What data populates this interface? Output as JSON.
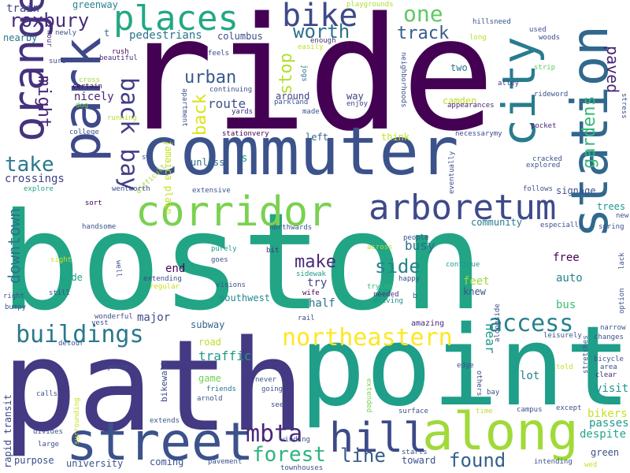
{
  "words": [
    {
      "text": "ride",
      "color": "#440154"
    },
    {
      "text": "boston",
      "color": "#21a585"
    },
    {
      "text": "path",
      "color": "#443983"
    },
    {
      "text": "point",
      "color": "#1f9e89"
    },
    {
      "text": "commuter",
      "color": "#3b528b"
    },
    {
      "text": "park",
      "color": "#3e4989"
    },
    {
      "text": "station",
      "color": "#31688e"
    },
    {
      "text": "city",
      "color": "#287c8e"
    },
    {
      "text": "along",
      "color": "#a0da39"
    },
    {
      "text": "street",
      "color": "#3b528b"
    },
    {
      "text": "corridor",
      "color": "#7ad151"
    },
    {
      "text": "arboretum",
      "color": "#3e4a89"
    },
    {
      "text": "places",
      "color": "#22a884"
    },
    {
      "text": "bike",
      "color": "#3e4a89"
    },
    {
      "text": "one",
      "color": "#5ec962"
    },
    {
      "text": "orange line",
      "color": "#46327e"
    },
    {
      "text": "hill",
      "color": "#3e4989"
    },
    {
      "text": "access",
      "color": "#26828e"
    },
    {
      "text": "northeastern",
      "color": "#fde725"
    },
    {
      "text": "buildings",
      "color": "#2a788e"
    },
    {
      "text": "mbta",
      "color": "#482878"
    },
    {
      "text": "forest",
      "color": "#2fb47c"
    },
    {
      "text": "line",
      "color": "#375a8c"
    },
    {
      "text": "found",
      "color": "#355f8d"
    },
    {
      "text": "take",
      "color": "#2a788e"
    },
    {
      "text": "back bay",
      "color": "#433e85"
    },
    {
      "text": "might",
      "color": "#482576"
    },
    {
      "text": "roxbury",
      "color": "#472d7b"
    },
    {
      "text": "worth",
      "color": "#2c728e"
    },
    {
      "text": "track",
      "color": "#365c8d"
    },
    {
      "text": "stop",
      "color": "#b5de2b"
    },
    {
      "text": "urban",
      "color": "#38598c"
    },
    {
      "text": "back",
      "color": "#dde318"
    },
    {
      "text": "make",
      "color": "#472a7a"
    },
    {
      "text": "side",
      "color": "#26828e"
    },
    {
      "text": "gardens",
      "color": "#35b779"
    },
    {
      "text": "paved",
      "color": "#482475"
    },
    {
      "text": "downtown",
      "color": "#2d708e"
    },
    {
      "text": "busy",
      "color": "#2e6e8e"
    },
    {
      "text": "near",
      "color": "#1f9a8a"
    },
    {
      "text": "train",
      "color": "#3f4889"
    },
    {
      "text": "greenway",
      "color": "#24868e"
    },
    {
      "text": "playgrounds",
      "color": "#addc30"
    },
    {
      "text": "pedestrians",
      "color": "#2b758e"
    },
    {
      "text": "columbus",
      "color": "#3e4c8a"
    },
    {
      "text": "nearby",
      "color": "#2a778e"
    },
    {
      "text": "route",
      "color": "#3c508b"
    },
    {
      "text": "crossings",
      "color": "#414287"
    },
    {
      "text": "community",
      "color": "#297b8e"
    },
    {
      "text": "end",
      "color": "#450559"
    },
    {
      "text": "southwest",
      "color": "#23898e"
    },
    {
      "text": "wide",
      "color": "#1fa088"
    },
    {
      "text": "half",
      "color": "#2d708e"
    },
    {
      "text": "try",
      "color": "#3f4788"
    },
    {
      "text": "knew",
      "color": "#3b528b"
    },
    {
      "text": "feet",
      "color": "#9bd93c"
    },
    {
      "text": "free",
      "color": "#440154"
    },
    {
      "text": "auto",
      "color": "#26828e"
    },
    {
      "text": "bus",
      "color": "#3dbc74"
    },
    {
      "text": "major",
      "color": "#3e4c8a"
    },
    {
      "text": "road",
      "color": "#bddf26"
    },
    {
      "text": "subway",
      "color": "#31668e"
    },
    {
      "text": "traffic",
      "color": "#1e9c89"
    },
    {
      "text": "game",
      "color": "#73d056"
    },
    {
      "text": "lot",
      "color": "#26818e"
    },
    {
      "text": "visit",
      "color": "#1f958b"
    },
    {
      "text": "bikers",
      "color": "#c8e020"
    },
    {
      "text": "passes",
      "color": "#1e9b8a"
    },
    {
      "text": "despite",
      "color": "#22a785"
    },
    {
      "text": "green",
      "color": "#3b528b"
    },
    {
      "text": "toward",
      "color": "#3b528b"
    },
    {
      "text": "coming",
      "color": "#3a538b"
    },
    {
      "text": "purpose",
      "color": "#3d4e8a"
    },
    {
      "text": "university",
      "color": "#3b528b"
    },
    {
      "text": "rapid transit",
      "color": "#3e4989"
    },
    {
      "text": "signage",
      "color": "#3b528b"
    },
    {
      "text": "trees",
      "color": "#1f968b"
    },
    {
      "text": "bikewalk",
      "color": "#3d4d8a"
    },
    {
      "text": "amazing",
      "color": "#472a7a"
    },
    {
      "text": "people",
      "color": "#3b528b"
    },
    {
      "text": "continue",
      "color": "#1e9b8a"
    },
    {
      "text": "sidewak",
      "color": "#1f998a"
    },
    {
      "text": "wife",
      "color": "#440154"
    },
    {
      "text": "rail",
      "color": "#3e4a89"
    },
    {
      "text": "driving",
      "color": "#20928c"
    },
    {
      "text": "trying",
      "color": "#35b779"
    },
    {
      "text": "needed",
      "color": "#472d7b"
    },
    {
      "text": "happy",
      "color": "#3d4d8a"
    },
    {
      "text": "way",
      "color": "#433e85"
    },
    {
      "text": "camden",
      "color": "#bddf26"
    },
    {
      "text": "two",
      "color": "#2b748e"
    },
    {
      "text": "enjoy",
      "color": "#414287"
    },
    {
      "text": "made",
      "color": "#3a538b"
    },
    {
      "text": "around",
      "color": "#424086"
    },
    {
      "text": "parkland",
      "color": "#39568c"
    },
    {
      "text": "neighborhoods",
      "color": "#3b528b"
    },
    {
      "text": "jogs",
      "color": "#2c728e"
    },
    {
      "text": "enough",
      "color": "#472d7b"
    },
    {
      "text": "easily",
      "color": "#bddf26"
    },
    {
      "text": "hillsneed",
      "color": "#3b528b"
    },
    {
      "text": "long",
      "color": "#b5de2b"
    },
    {
      "text": "used",
      "color": "#3b528b"
    },
    {
      "text": "woods",
      "color": "#3e4a89"
    },
    {
      "text": "strip",
      "color": "#5ec962"
    },
    {
      "text": "alley",
      "color": "#433e85"
    },
    {
      "text": "rideword",
      "color": "#3b528b"
    },
    {
      "text": "pocket",
      "color": "#482475"
    },
    {
      "text": "appearances",
      "color": "#482677"
    },
    {
      "text": "necessarymy",
      "color": "#3e4a89"
    },
    {
      "text": "think",
      "color": "#c8e020"
    },
    {
      "text": "left",
      "color": "#31688e"
    },
    {
      "text": "stationvery",
      "color": "#440154"
    },
    {
      "text": "continuing",
      "color": "#3b528b"
    },
    {
      "text": "yards",
      "color": "#482878"
    },
    {
      "text": "apartment",
      "color": "#3b528b"
    },
    {
      "text": "feels",
      "color": "#3e4a89"
    },
    {
      "text": "beautiful",
      "color": "#472d7b"
    },
    {
      "text": "rush",
      "color": "#440154"
    },
    {
      "text": "newly",
      "color": "#3b528b"
    },
    {
      "text": "hour",
      "color": "#482878"
    },
    {
      "text": "sure",
      "color": "#3e4a89"
    },
    {
      "text": "t",
      "color": "#2c728e"
    },
    {
      "text": "certain",
      "color": "#440154"
    },
    {
      "text": "cross",
      "color": "#a0da39"
    },
    {
      "text": "dog",
      "color": "#7ad151"
    },
    {
      "text": "running",
      "color": "#b5de2b"
    },
    {
      "text": "nicely",
      "color": "#482475"
    },
    {
      "text": "college",
      "color": "#3b528b"
    },
    {
      "text": "sw",
      "color": "#3b528b"
    },
    {
      "text": "jamaica plain",
      "color": "#c8e020"
    },
    {
      "text": "difficult",
      "color": "#a0da39"
    },
    {
      "text": "wentworth",
      "color": "#3e4a89"
    },
    {
      "text": "explore",
      "color": "#20a386"
    },
    {
      "text": "sort",
      "color": "#440154"
    },
    {
      "text": "handsome",
      "color": "#3b528b"
    },
    {
      "text": "extensive",
      "color": "#3b528b"
    },
    {
      "text": "unless",
      "color": "#31688e"
    },
    {
      "text": "s",
      "color": "#1f9e89"
    },
    {
      "text": "purely",
      "color": "#1f9e89"
    },
    {
      "text": "goes",
      "color": "#3b528b"
    },
    {
      "text": "northwards",
      "color": "#3b528b"
    },
    {
      "text": "bit",
      "color": "#482878"
    },
    {
      "text": "across",
      "color": "#b5de2b"
    },
    {
      "text": "sight",
      "color": "#c8e020"
    },
    {
      "text": "well",
      "color": "#3b528b"
    },
    {
      "text": "extending",
      "color": "#3e4a89"
    },
    {
      "text": "regular",
      "color": "#c8e020"
    },
    {
      "text": "visions",
      "color": "#3b528b"
    },
    {
      "text": "right",
      "color": "#3b528b"
    },
    {
      "text": "still",
      "color": "#3b528b"
    },
    {
      "text": "bumpy",
      "color": "#3b528b"
    },
    {
      "text": "vest",
      "color": "#3b528b"
    },
    {
      "text": "wonderful",
      "color": "#3e4a89"
    },
    {
      "text": "detour",
      "color": "#3b528b"
    },
    {
      "text": "youre",
      "color": "#3b528b"
    },
    {
      "text": "friends",
      "color": "#2c728e"
    },
    {
      "text": "arnold",
      "color": "#3b528b"
    },
    {
      "text": "never",
      "color": "#3b528b"
    },
    {
      "text": "going",
      "color": "#3b528b"
    },
    {
      "text": "see",
      "color": "#3e4a89"
    },
    {
      "text": "winding",
      "color": "#3b528b"
    },
    {
      "text": "pavement",
      "color": "#3b528b"
    },
    {
      "text": "townhouses",
      "color": "#3b528b"
    },
    {
      "text": "starts",
      "color": "#3b528b"
    },
    {
      "text": "surface",
      "color": "#3b528b"
    },
    {
      "text": "time",
      "color": "#b5de2b"
    },
    {
      "text": "campus",
      "color": "#3b528b"
    },
    {
      "text": "intending",
      "color": "#3b528b"
    },
    {
      "text": "wed",
      "color": "#c8e020"
    },
    {
      "text": "bay",
      "color": "#3b528b"
    },
    {
      "text": "others",
      "color": "#3e4a89"
    },
    {
      "text": "extended",
      "color": "#7ad151"
    },
    {
      "text": "edge",
      "color": "#3b528b"
    },
    {
      "text": "told",
      "color": "#c8e020"
    },
    {
      "text": "except",
      "color": "#3b528b"
    },
    {
      "text": "bicycle",
      "color": "#3b528b"
    },
    {
      "text": "area",
      "color": "#3b528b"
    },
    {
      "text": "clear",
      "color": "#482878"
    },
    {
      "text": "changes",
      "color": "#3b528b"
    },
    {
      "text": "leisurely",
      "color": "#3b528b"
    },
    {
      "text": "narrow",
      "color": "#3b528b"
    },
    {
      "text": "stretches",
      "color": "#3b528b"
    },
    {
      "text": "alongside",
      "color": "#3b528b"
    },
    {
      "text": "option",
      "color": "#3b528b"
    },
    {
      "text": "lack",
      "color": "#3b528b"
    },
    {
      "text": "spring",
      "color": "#3b528b"
    },
    {
      "text": "new",
      "color": "#3b528b"
    },
    {
      "text": "especially",
      "color": "#3b528b"
    },
    {
      "text": "follows",
      "color": "#3b528b"
    },
    {
      "text": "explored",
      "color": "#3b528b"
    },
    {
      "text": "cracked",
      "color": "#3b528b"
    },
    {
      "text": "eventually",
      "color": "#3b528b"
    },
    {
      "text": "stress",
      "color": "#3b528b"
    },
    {
      "text": "calls",
      "color": "#3b528b"
    },
    {
      "text": "divides",
      "color": "#3b528b"
    },
    {
      "text": "large",
      "color": "#3b528b"
    },
    {
      "text": "surrounding",
      "color": "#c8e020"
    },
    {
      "text": "extends",
      "color": "#3b528b"
    },
    {
      "text": "b",
      "color": "#3b528b"
    }
  ]
}
